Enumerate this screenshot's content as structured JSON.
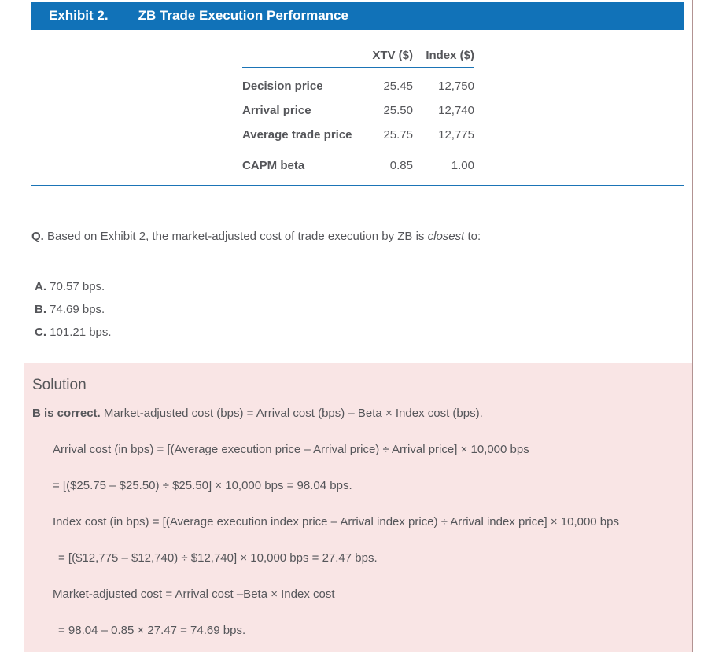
{
  "exhibit": {
    "label": "Exhibit 2.",
    "title": "ZB Trade Execution Performance"
  },
  "table": {
    "col_headers": [
      "XTV ($)",
      "Index ($)"
    ],
    "rows": [
      {
        "label": "Decision price",
        "xtv": "25.45",
        "index": "12,750"
      },
      {
        "label": "Arrival price",
        "xtv": "25.50",
        "index": "12,740"
      },
      {
        "label": "Average trade price",
        "xtv": "25.75",
        "index": "12,775"
      }
    ],
    "beta_row": {
      "label": "CAPM beta",
      "xtv": "0.85",
      "index": "1.00"
    }
  },
  "question": {
    "prefix": "Q.",
    "text_before_italic": " Based on Exhibit 2, the market-adjusted cost of trade execution by ZB is ",
    "italic_word": "closest",
    "text_after_italic": " to:",
    "options": [
      {
        "letter": "A.",
        "text": " 70.57 bps."
      },
      {
        "letter": "B.",
        "text": " 74.69 bps."
      },
      {
        "letter": "C.",
        "text": " 101.21 bps."
      }
    ]
  },
  "solution": {
    "heading": "Solution",
    "verdict_bold": "B is correct.",
    "verdict_rest": " Market-adjusted cost (bps) = Arrival cost (bps) – Beta × Index cost (bps).",
    "steps": [
      "Arrival cost (in bps) = [(Average execution price – Arrival price) ÷ Arrival price] × 10,000 bps",
      "= [($25.75 – $25.50) ÷ $25.50] × 10,000 bps = 98.04 bps.",
      "Index cost (in bps) = [(Average execution index price – Arrival index price) ÷ Arrival index price] × 10,000 bps",
      "= [($12,775 – $12,740) ÷ $12,740] × 10,000 bps = 27.47 bps.",
      "Market-adjusted cost = Arrival cost –Beta × Index cost",
      "= 98.04 – 0.85 × 27.47 = 74.69 bps."
    ]
  },
  "colors": {
    "header_blue": "#1172b8",
    "rule_blue": "#1b74b6",
    "solution_bg": "#f9e5e5",
    "solution_border": "#d8b2b2",
    "page_border": "#b29392",
    "text_gray": "#55565a"
  }
}
